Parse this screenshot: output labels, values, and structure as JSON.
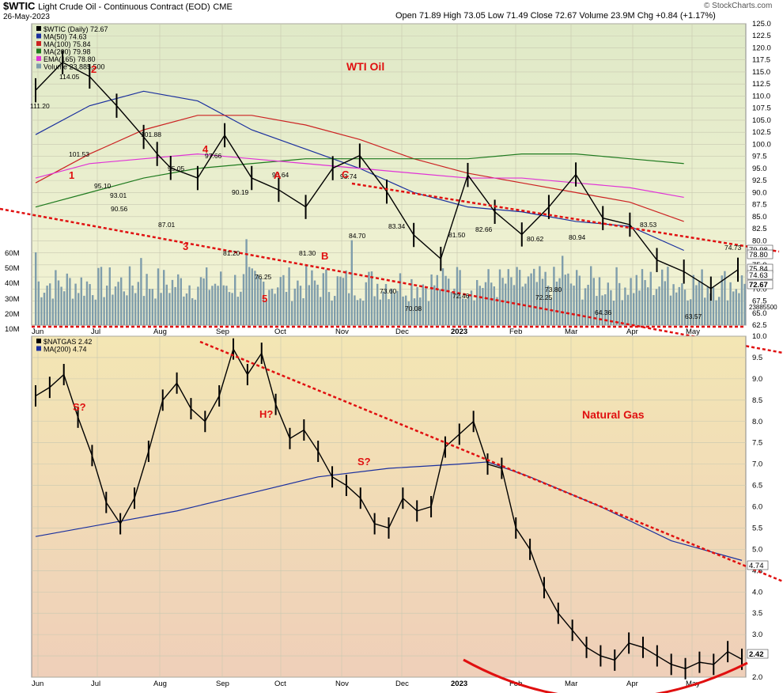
{
  "header": {
    "symbol": "$WTIC",
    "name": "Light Crude Oil - Continuous Contract (EOD)",
    "exchange": "CME",
    "date": "26-May-2023",
    "ohlc_line": "Open 71.89   High 73.05   Low 71.49   Close 72.67   Volume 23.9M   Chg +0.84 (+1.17%)",
    "watermark": "© StockCharts.com"
  },
  "colors": {
    "oil_bg_top": "#dfe9c7",
    "oil_bg_bottom": "#f3f3d4",
    "gas_bg_top": "#f3e6b4",
    "gas_bg_bottom": "#efcfb9",
    "ma50": "#1a2f9e",
    "ma100": "#cc2222",
    "ma200": "#1e7a1e",
    "ema165": "#e033d6",
    "volume": "#7f9dab",
    "annotation": "#e01010",
    "price": "#000000"
  },
  "chart_data": [
    {
      "type": "line",
      "title": "WTI Oil",
      "legend_placement": "top-left",
      "legend": [
        {
          "label": "$WTIC (Daily) 72.67",
          "color": "#000000"
        },
        {
          "label": "MA(50) 74.63",
          "color": "#1a2f9e"
        },
        {
          "label": "MA(100) 75.84",
          "color": "#cc2222"
        },
        {
          "label": "MA(200) 79.98",
          "color": "#1e7a1e"
        },
        {
          "label": "EMA(165) 78.80",
          "color": "#e033d6"
        },
        {
          "label": "Volume 23,885,500",
          "color": "#7f9dab"
        }
      ],
      "x_ticks": [
        "Jun",
        "Jul",
        "Aug",
        "Sep",
        "Oct",
        "Nov",
        "Dec",
        "2023",
        "Feb",
        "Mar",
        "Apr",
        "May"
      ],
      "y_ticks": [
        "125.0",
        "122.5",
        "120.0",
        "117.5",
        "115.0",
        "112.5",
        "110.0",
        "107.5",
        "105.0",
        "102.5",
        "100.0",
        "97.5",
        "95.0",
        "92.5",
        "90.0",
        "87.5",
        "85.0",
        "82.5",
        "80.0",
        "77.5",
        "75.0",
        "72.5",
        "70.0",
        "67.5",
        "65.0",
        "62.5"
      ],
      "ylim": [
        62.5,
        125.0
      ],
      "volume_ticks": [
        "60M",
        "50M",
        "40M",
        "30M",
        "20M",
        "10M"
      ],
      "right_labels": [
        "79.98",
        "78.80",
        "75.84",
        "74.63",
        "72.67",
        "23885500"
      ],
      "series": [
        {
          "name": "$WTIC (Daily)",
          "x": [
            0,
            2,
            4,
            6,
            8,
            9,
            10,
            12,
            14,
            16,
            18,
            20,
            22,
            24,
            26,
            28,
            30,
            32,
            34,
            36,
            38,
            40,
            42,
            44,
            46,
            48,
            50,
            52
          ],
          "y": [
            111.2,
            117,
            114.05,
            108,
            101.53,
            98,
            95.1,
            93,
            101.88,
            93.01,
            90.56,
            87.01,
            95.05,
            97.66,
            90.19,
            81.2,
            76.25,
            93.64,
            86,
            81.3,
            87,
            93.74,
            84.7,
            83.34,
            76,
            73.6,
            70.08,
            74
          ]
        },
        {
          "name": "MA(50)",
          "x": [
            0,
            4,
            8,
            12,
            16,
            20,
            24,
            28,
            32,
            36,
            40,
            44,
            48
          ],
          "y": [
            102,
            108,
            111,
            109,
            103,
            99,
            95,
            90,
            87,
            86,
            84,
            83,
            78
          ]
        },
        {
          "name": "MA(100)",
          "x": [
            0,
            4,
            8,
            12,
            16,
            20,
            24,
            28,
            32,
            36,
            40,
            44,
            48
          ],
          "y": [
            92,
            98,
            103,
            106,
            106,
            104,
            101,
            97,
            94,
            92,
            90,
            88,
            84
          ]
        },
        {
          "name": "MA(200)",
          "x": [
            0,
            4,
            8,
            12,
            16,
            20,
            24,
            28,
            32,
            36,
            40,
            44,
            48
          ],
          "y": [
            87,
            90,
            93,
            95,
            96,
            97,
            97,
            97,
            97,
            98,
            98,
            97,
            96
          ]
        },
        {
          "name": "EMA(165)",
          "x": [
            0,
            4,
            8,
            12,
            16,
            20,
            24,
            28,
            32,
            36,
            40,
            44,
            48
          ],
          "y": [
            93,
            96,
            97,
            98,
            97,
            96,
            95,
            94,
            93,
            93,
            92,
            91,
            89
          ]
        }
      ],
      "price_labels": [
        "111.20",
        "114.05",
        "101.53",
        "95.10",
        "101.88",
        "93.01",
        "90.56",
        "87.01",
        "95.05",
        "97.66",
        "90.19",
        "81.20",
        "76.25",
        "93.64",
        "81.30",
        "84.70",
        "93.74",
        "83.34",
        "73.60",
        "70.08",
        "81.50",
        "72.46",
        "82.66",
        "72.25",
        "80.62",
        "73.80",
        "80.94",
        "64.36",
        "83.53",
        "74.73",
        "63.57"
      ],
      "annotations": [
        "1",
        "2",
        "3",
        "4",
        "5",
        "A",
        "B",
        "C"
      ]
    },
    {
      "type": "line",
      "title": "Natural Gas",
      "legend_placement": "top-left",
      "legend": [
        {
          "label": "$NATGAS 2.42",
          "color": "#000000"
        },
        {
          "label": "MA(200) 4.74",
          "color": "#1a2f9e"
        }
      ],
      "x_ticks": [
        "Jun",
        "Jul",
        "Aug",
        "Sep",
        "Oct",
        "Nov",
        "Dec",
        "2023",
        "Feb",
        "Mar",
        "Apr",
        "May"
      ],
      "y_ticks": [
        "10.0",
        "9.5",
        "9.0",
        "8.5",
        "8.0",
        "7.5",
        "7.0",
        "6.5",
        "6.0",
        "5.5",
        "5.0",
        "4.5",
        "4.0",
        "3.5",
        "3.0",
        "2.5",
        "2.0"
      ],
      "ylim": [
        2.0,
        10.0
      ],
      "right_labels": [
        "4.74",
        "2.42"
      ],
      "series": [
        {
          "name": "$NATGAS",
          "x": [
            0,
            2,
            4,
            6,
            8,
            10,
            12,
            14,
            16,
            18,
            20,
            22,
            24,
            26,
            28,
            30,
            32,
            34,
            36,
            38,
            40,
            42,
            44,
            46,
            48,
            50,
            52,
            54,
            56,
            58,
            60,
            62,
            64,
            66,
            68,
            70,
            72,
            74,
            76,
            78,
            80,
            82,
            84,
            86,
            88,
            90,
            92,
            94,
            96,
            98,
            100
          ],
          "y": [
            8.6,
            8.8,
            9.1,
            8.1,
            7.2,
            6.1,
            5.6,
            6.2,
            7.3,
            8.5,
            8.9,
            8.3,
            8.0,
            8.6,
            9.7,
            9.1,
            9.6,
            8.4,
            7.6,
            7.8,
            7.3,
            6.7,
            6.5,
            6.2,
            5.6,
            5.5,
            6.2,
            5.9,
            6.0,
            7.4,
            7.7,
            8.0,
            7.0,
            6.9,
            5.5,
            5.0,
            4.1,
            3.5,
            3.1,
            2.7,
            2.5,
            2.4,
            2.8,
            2.7,
            2.5,
            2.3,
            2.2,
            2.35,
            2.3,
            2.6,
            2.42
          ]
        },
        {
          "name": "MA(200)",
          "x": [
            0,
            10,
            20,
            30,
            40,
            50,
            60,
            64,
            70,
            80,
            90,
            100
          ],
          "y": [
            5.3,
            5.6,
            5.9,
            6.3,
            6.7,
            6.9,
            7.0,
            7.05,
            6.7,
            6.0,
            5.2,
            4.74
          ]
        }
      ],
      "annotations": [
        "S?",
        "H?",
        "S?"
      ]
    }
  ]
}
